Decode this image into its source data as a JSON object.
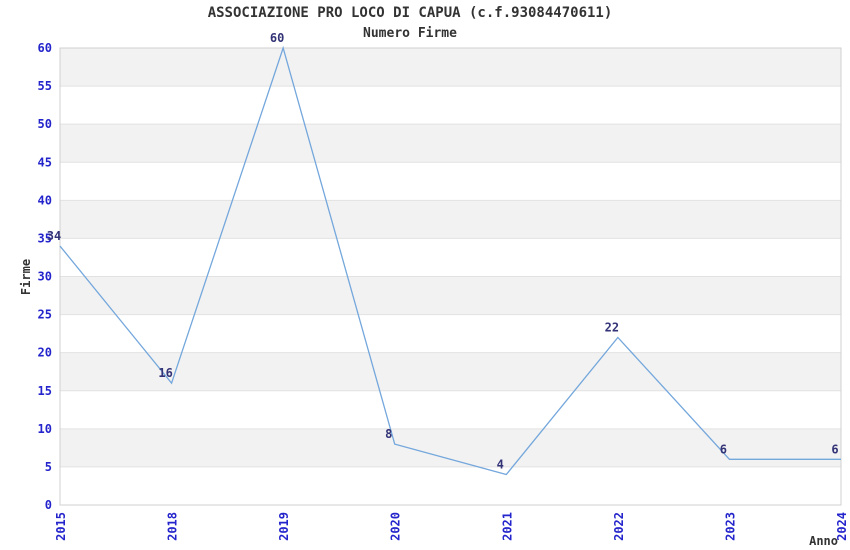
{
  "chart_data": {
    "type": "line",
    "title": "ASSOCIAZIONE PRO LOCO DI CAPUA (c.f.93084470611)",
    "subtitle": "Numero Firme",
    "xlabel": "Anno",
    "ylabel": "Firme",
    "categories": [
      "2015",
      "2018",
      "2019",
      "2020",
      "2021",
      "2022",
      "2023",
      "2024"
    ],
    "values": [
      34,
      16,
      60,
      8,
      4,
      22,
      6,
      6
    ],
    "ylim": [
      0,
      60
    ],
    "ytick_step": 5,
    "yticks": [
      0,
      5,
      10,
      15,
      20,
      25,
      30,
      35,
      40,
      45,
      50,
      55,
      60
    ],
    "grid": "horizontal-bands-alternating",
    "legend": "none",
    "colors": {
      "line": "#74a7dc",
      "axis_tick_text": "#2424cc",
      "data_label_text": "#333377",
      "title_text": "#333333",
      "band_fill": "#f2f2f2",
      "gridline": "#e2e2e2",
      "plot_border": "#d0d0d0",
      "background": "#ffffff"
    }
  }
}
